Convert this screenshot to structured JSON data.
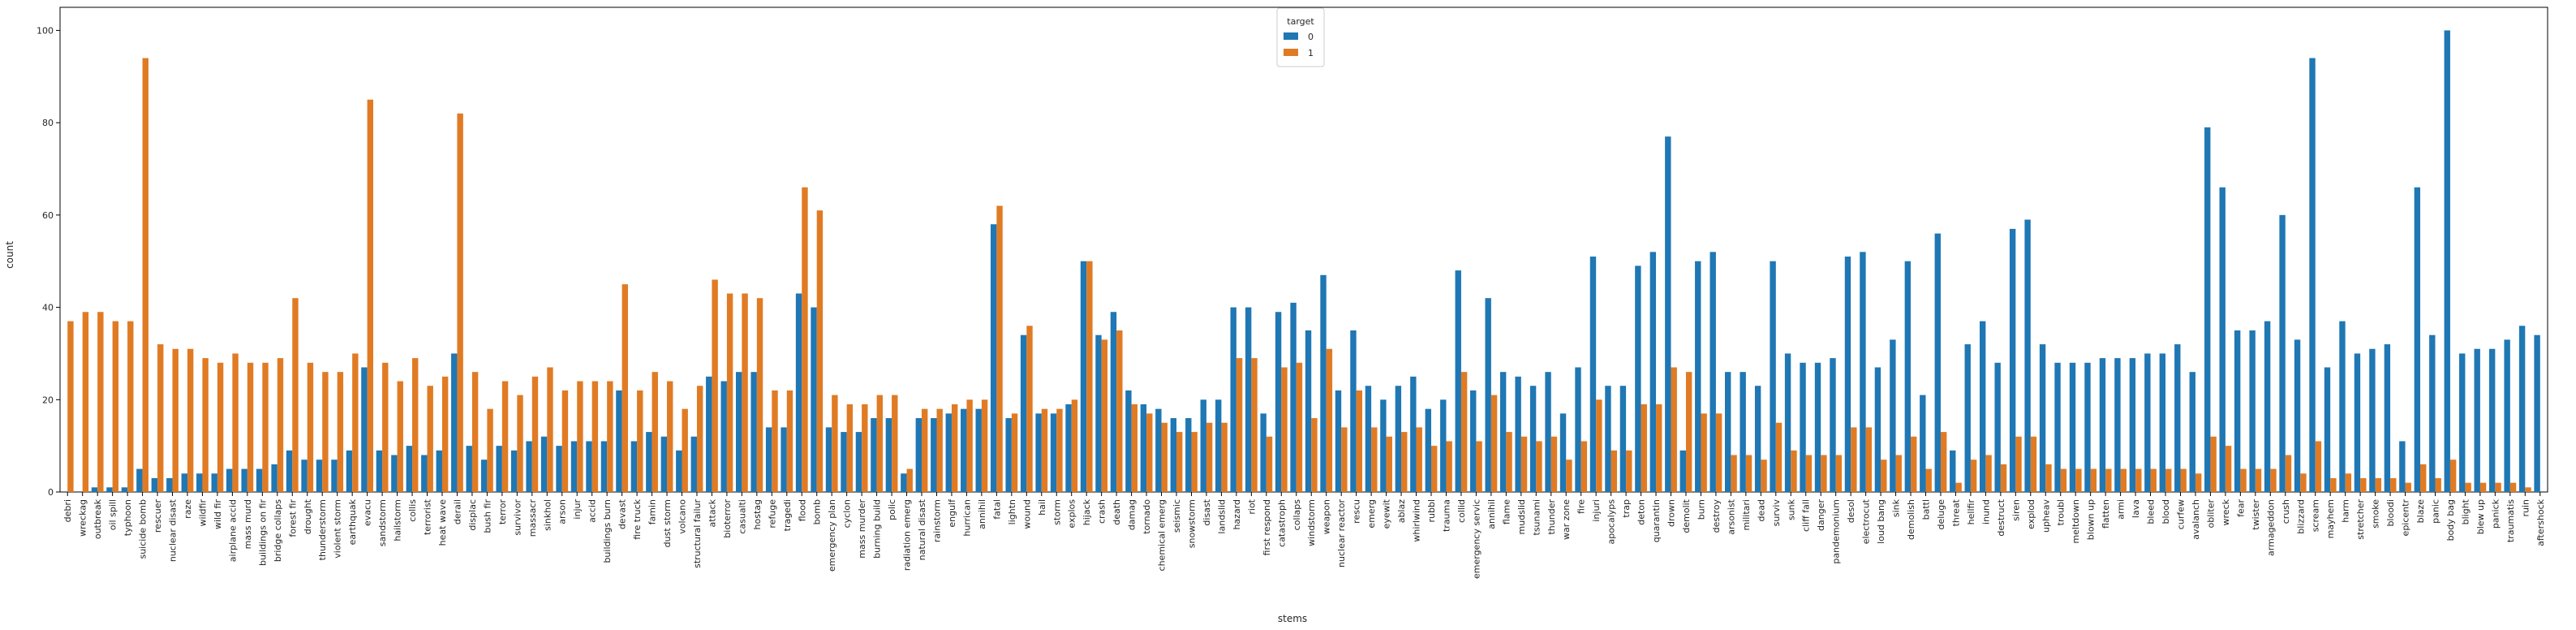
{
  "chart_data": {
    "type": "bar",
    "xlabel": "stems",
    "ylabel": "count",
    "ylim": [
      0,
      105
    ],
    "yticks": [
      0,
      20,
      40,
      60,
      80,
      100
    ],
    "grid": false,
    "legend": {
      "title": "target",
      "placement": "top-center"
    },
    "categories": [
      "debri",
      "wreckag",
      "outbreak",
      "oil spill",
      "typhoon",
      "suicide bomb",
      "rescuer",
      "nuclear disast",
      "raze",
      "wildfir",
      "wild fir",
      "airplane accid",
      "mass murd",
      "buildings on fir",
      "bridge collaps",
      "forest fir",
      "drought",
      "thunderstorm",
      "violent storm",
      "earthquak",
      "evacu",
      "sandstorm",
      "hailstorm",
      "collis",
      "terrorist",
      "heat wave",
      "derail",
      "displac",
      "bush fir",
      "terror",
      "survivor",
      "massacr",
      "sinkhol",
      "arson",
      "injur",
      "accid",
      "buildings burn",
      "devast",
      "fire truck",
      "famin",
      "dust storm",
      "volcano",
      "structural failur",
      "attack",
      "bioterror",
      "casualti",
      "hostag",
      "refuge",
      "tragedi",
      "flood",
      "bomb",
      "emergency plan",
      "cyclon",
      "mass murder",
      "burning build",
      "polic",
      "radiation emerg",
      "natural disast",
      "rainstorm",
      "engulf",
      "hurrican",
      "annihil",
      "fatal",
      "lightn",
      "wound",
      "hail",
      "storm",
      "explos",
      "hijack",
      "crash",
      "death",
      "damag",
      "tornado",
      "chemical emerg",
      "seismic",
      "snowstorm",
      "disast",
      "landslid",
      "hazard",
      "riot",
      "first respond",
      "catastroph",
      "collaps",
      "windstorm",
      "weapon",
      "nuclear reactor",
      "rescu",
      "emerg",
      "eyewit",
      "ablaz",
      "whirlwind",
      "rubbl",
      "trauma",
      "collid",
      "emergency servic",
      "annihil",
      "flame",
      "mudslid",
      "tsunami",
      "thunder",
      "war zone",
      "fire",
      "injuri",
      "apocalyps",
      "trap",
      "deton",
      "quarantin",
      "drown",
      "demolit",
      "burn",
      "destroy",
      "arsonist",
      "militari",
      "dead",
      "surviv",
      "sunk",
      "cliff fall",
      "danger",
      "pandemonium",
      "desol",
      "electrocut",
      "loud bang",
      "sink",
      "demolish",
      "battl",
      "deluge",
      "threat",
      "hellfir",
      "inund",
      "destruct",
      "siren",
      "explod",
      "upheav",
      "troubl",
      "meltdown",
      "blown up",
      "flatten",
      "armi",
      "lava",
      "bleed",
      "blood",
      "curfew",
      "avalanch",
      "obliter",
      "wreck",
      "fear",
      "twister",
      "armageddon",
      "crush",
      "blizzard",
      "scream",
      "mayhem",
      "harm",
      "stretcher",
      "smoke",
      "bloodi",
      "epicentr",
      "blaze",
      "panic",
      "body bag",
      "blight",
      "blew up",
      "panick",
      "traumatis",
      "ruin",
      "aftershock"
    ],
    "series": [
      {
        "name": "0",
        "color": "#1f77b4",
        "values": [
          0,
          0,
          1,
          1,
          1,
          5,
          3,
          3,
          4,
          4,
          4,
          5,
          5,
          5,
          6,
          9,
          7,
          7,
          7,
          9,
          27,
          9,
          8,
          10,
          8,
          9,
          30,
          10,
          7,
          10,
          9,
          11,
          12,
          10,
          11,
          11,
          11,
          22,
          11,
          13,
          12,
          9,
          12,
          25,
          24,
          26,
          26,
          14,
          14,
          43,
          40,
          14,
          13,
          13,
          16,
          16,
          4,
          16,
          16,
          17,
          18,
          18,
          58,
          16,
          34,
          17,
          17,
          19,
          50,
          34,
          39,
          22,
          19,
          18,
          16,
          16,
          20,
          20,
          40,
          40,
          17,
          39,
          41,
          35,
          47,
          22,
          35,
          23,
          20,
          23,
          25,
          18,
          20,
          48,
          22,
          42,
          26,
          25,
          23,
          26,
          17,
          27,
          51,
          23,
          23,
          49,
          52,
          77,
          9,
          50,
          52,
          26,
          26,
          23,
          50,
          30,
          28,
          28,
          29,
          51,
          52,
          27,
          33,
          50,
          21,
          56,
          9,
          32,
          37,
          28,
          57,
          59,
          32,
          28,
          28,
          28,
          29,
          29,
          29,
          30,
          30,
          32,
          26,
          79,
          66,
          35,
          35,
          37,
          60,
          33,
          94,
          27,
          37,
          30,
          31,
          32,
          11,
          66,
          34,
          100,
          30,
          31,
          31,
          33,
          36,
          34
        ]
      },
      {
        "name": "1",
        "color": "#e07b24",
        "values": [
          37,
          39,
          39,
          37,
          37,
          94,
          32,
          31,
          31,
          29,
          28,
          30,
          28,
          28,
          29,
          42,
          28,
          26,
          26,
          30,
          85,
          28,
          24,
          29,
          23,
          25,
          82,
          26,
          18,
          24,
          21,
          25,
          27,
          22,
          24,
          24,
          24,
          45,
          22,
          26,
          24,
          18,
          23,
          46,
          43,
          43,
          42,
          22,
          22,
          66,
          61,
          21,
          19,
          19,
          21,
          21,
          5,
          18,
          18,
          19,
          20,
          20,
          62,
          17,
          36,
          18,
          18,
          20,
          50,
          33,
          35,
          19,
          17,
          15,
          13,
          13,
          15,
          15,
          29,
          29,
          12,
          27,
          28,
          16,
          31,
          14,
          22,
          14,
          12,
          13,
          14,
          10,
          11,
          26,
          11,
          21,
          13,
          12,
          11,
          12,
          7,
          11,
          20,
          9,
          9,
          19,
          19,
          27,
          26,
          17,
          17,
          8,
          8,
          7,
          15,
          9,
          8,
          8,
          8,
          14,
          14,
          7,
          8,
          12,
          5,
          13,
          2,
          7,
          8,
          6,
          12,
          12,
          6,
          5,
          5,
          5,
          5,
          5,
          5,
          5,
          5,
          5,
          4,
          12,
          10,
          5,
          5,
          5,
          8,
          4,
          11,
          3,
          4,
          3,
          3,
          3,
          2,
          6,
          3,
          7,
          2,
          2,
          2,
          2,
          1,
          0
        ]
      }
    ]
  }
}
